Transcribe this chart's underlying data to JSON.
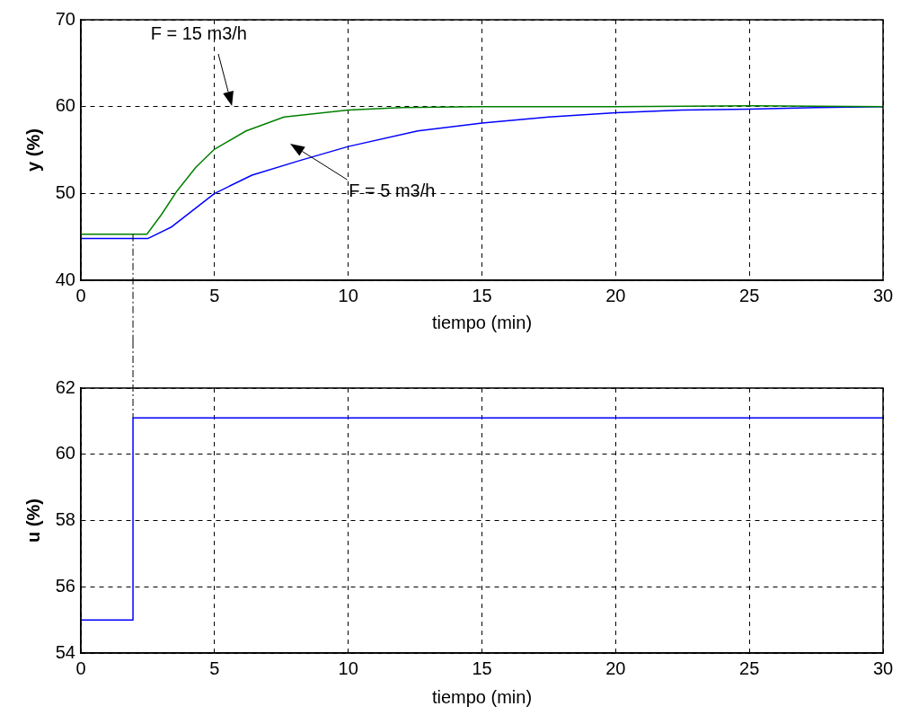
{
  "chart_data": [
    {
      "type": "line",
      "xlabel": "tiempo (min)",
      "ylabel": "y (%)",
      "xlim": [
        0,
        30
      ],
      "ylim": [
        40,
        70
      ],
      "xticks": [
        0,
        5,
        10,
        15,
        20,
        25,
        30
      ],
      "yticks": [
        40,
        50,
        60,
        70
      ],
      "grid": true,
      "legend": false,
      "marker": "none",
      "series": [
        {
          "color": "#008000",
          "x": [
            0,
            1,
            2,
            2.47,
            3,
            3.6,
            4.3,
            5,
            6.18,
            7.6,
            10,
            12,
            15,
            20,
            25,
            30
          ],
          "values": [
            45.3,
            45.3,
            45.3,
            45.3,
            47.5,
            50.3,
            53,
            55.1,
            57.2,
            58.8,
            59.6,
            59.9,
            60,
            60,
            60.1,
            60
          ]
        },
        {
          "color": "#0000ff",
          "x": [
            0,
            1,
            2,
            2.5,
            3.37,
            5,
            6.4,
            8.2,
            10,
            12.6,
            15,
            17.5,
            20,
            22.5,
            25,
            27.5,
            30
          ],
          "values": [
            44.8,
            44.8,
            44.8,
            44.8,
            46.1,
            50,
            52.1,
            53.8,
            55.4,
            57.2,
            58.1,
            58.8,
            59.3,
            59.6,
            59.7,
            59.9,
            60
          ]
        }
      ],
      "annotations": [
        "F = 15 m3/h",
        "F = 5 m3/h"
      ],
      "ref_lines": [
        {
          "axis": "x",
          "value": 1.95,
          "color": "#000000",
          "line_style": "dashed"
        }
      ]
    },
    {
      "type": "step",
      "xlabel": "tiempo (min)",
      "ylabel": "u (%)",
      "xlim": [
        0,
        30
      ],
      "ylim": [
        54,
        62
      ],
      "xticks": [
        0,
        5,
        10,
        15,
        20,
        25,
        30
      ],
      "yticks": [
        54,
        56,
        58,
        60,
        62
      ],
      "grid": true,
      "legend": false,
      "marker": "none",
      "series": [
        {
          "color": "#0000ff",
          "x": [
            0,
            1.95,
            30
          ],
          "values": [
            55,
            61.1,
            61.1
          ]
        }
      ],
      "ref_lines": [
        {
          "axis": "x",
          "value": 1.95,
          "color": "#000000",
          "line_style": "dashed"
        }
      ]
    }
  ]
}
